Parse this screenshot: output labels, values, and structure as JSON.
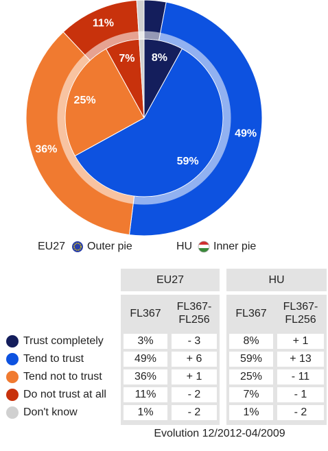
{
  "chart_data": {
    "type": "pie",
    "categories": [
      "Trust completely",
      "Tend to trust",
      "Tend not to trust",
      "Do not trust at all",
      "Don't know"
    ],
    "colors": [
      "#141e5c",
      "#0d52e0",
      "#f07a30",
      "#c8320c",
      "#d0d0d0"
    ],
    "series": [
      {
        "name": "EU27",
        "ring": "Outer pie",
        "values": [
          3,
          49,
          36,
          11,
          1
        ],
        "value_labels": [
          null,
          "49%",
          "36%",
          "11%",
          null
        ]
      },
      {
        "name": "HU",
        "ring": "Inner pie",
        "values": [
          8,
          59,
          25,
          7,
          1
        ],
        "value_labels": [
          "8%",
          "59%",
          "25%",
          "7%",
          null
        ]
      }
    ]
  },
  "table": {
    "groups": [
      "EU27",
      "HU"
    ],
    "columns": [
      "FL367",
      [
        "FL367-",
        "FL256"
      ],
      "FL367",
      [
        "FL367-",
        "FL256"
      ]
    ],
    "rows": [
      [
        "3%",
        "- 3",
        "8%",
        "+ 1"
      ],
      [
        "49%",
        "+ 6",
        "59%",
        "+ 13"
      ],
      [
        "36%",
        "+ 1",
        "25%",
        "- 11"
      ],
      [
        "11%",
        "- 2",
        "7%",
        "- 1"
      ],
      [
        "1%",
        "- 2",
        "1%",
        "- 2"
      ]
    ],
    "footer": "Evolution 12/2012-04/2009"
  }
}
